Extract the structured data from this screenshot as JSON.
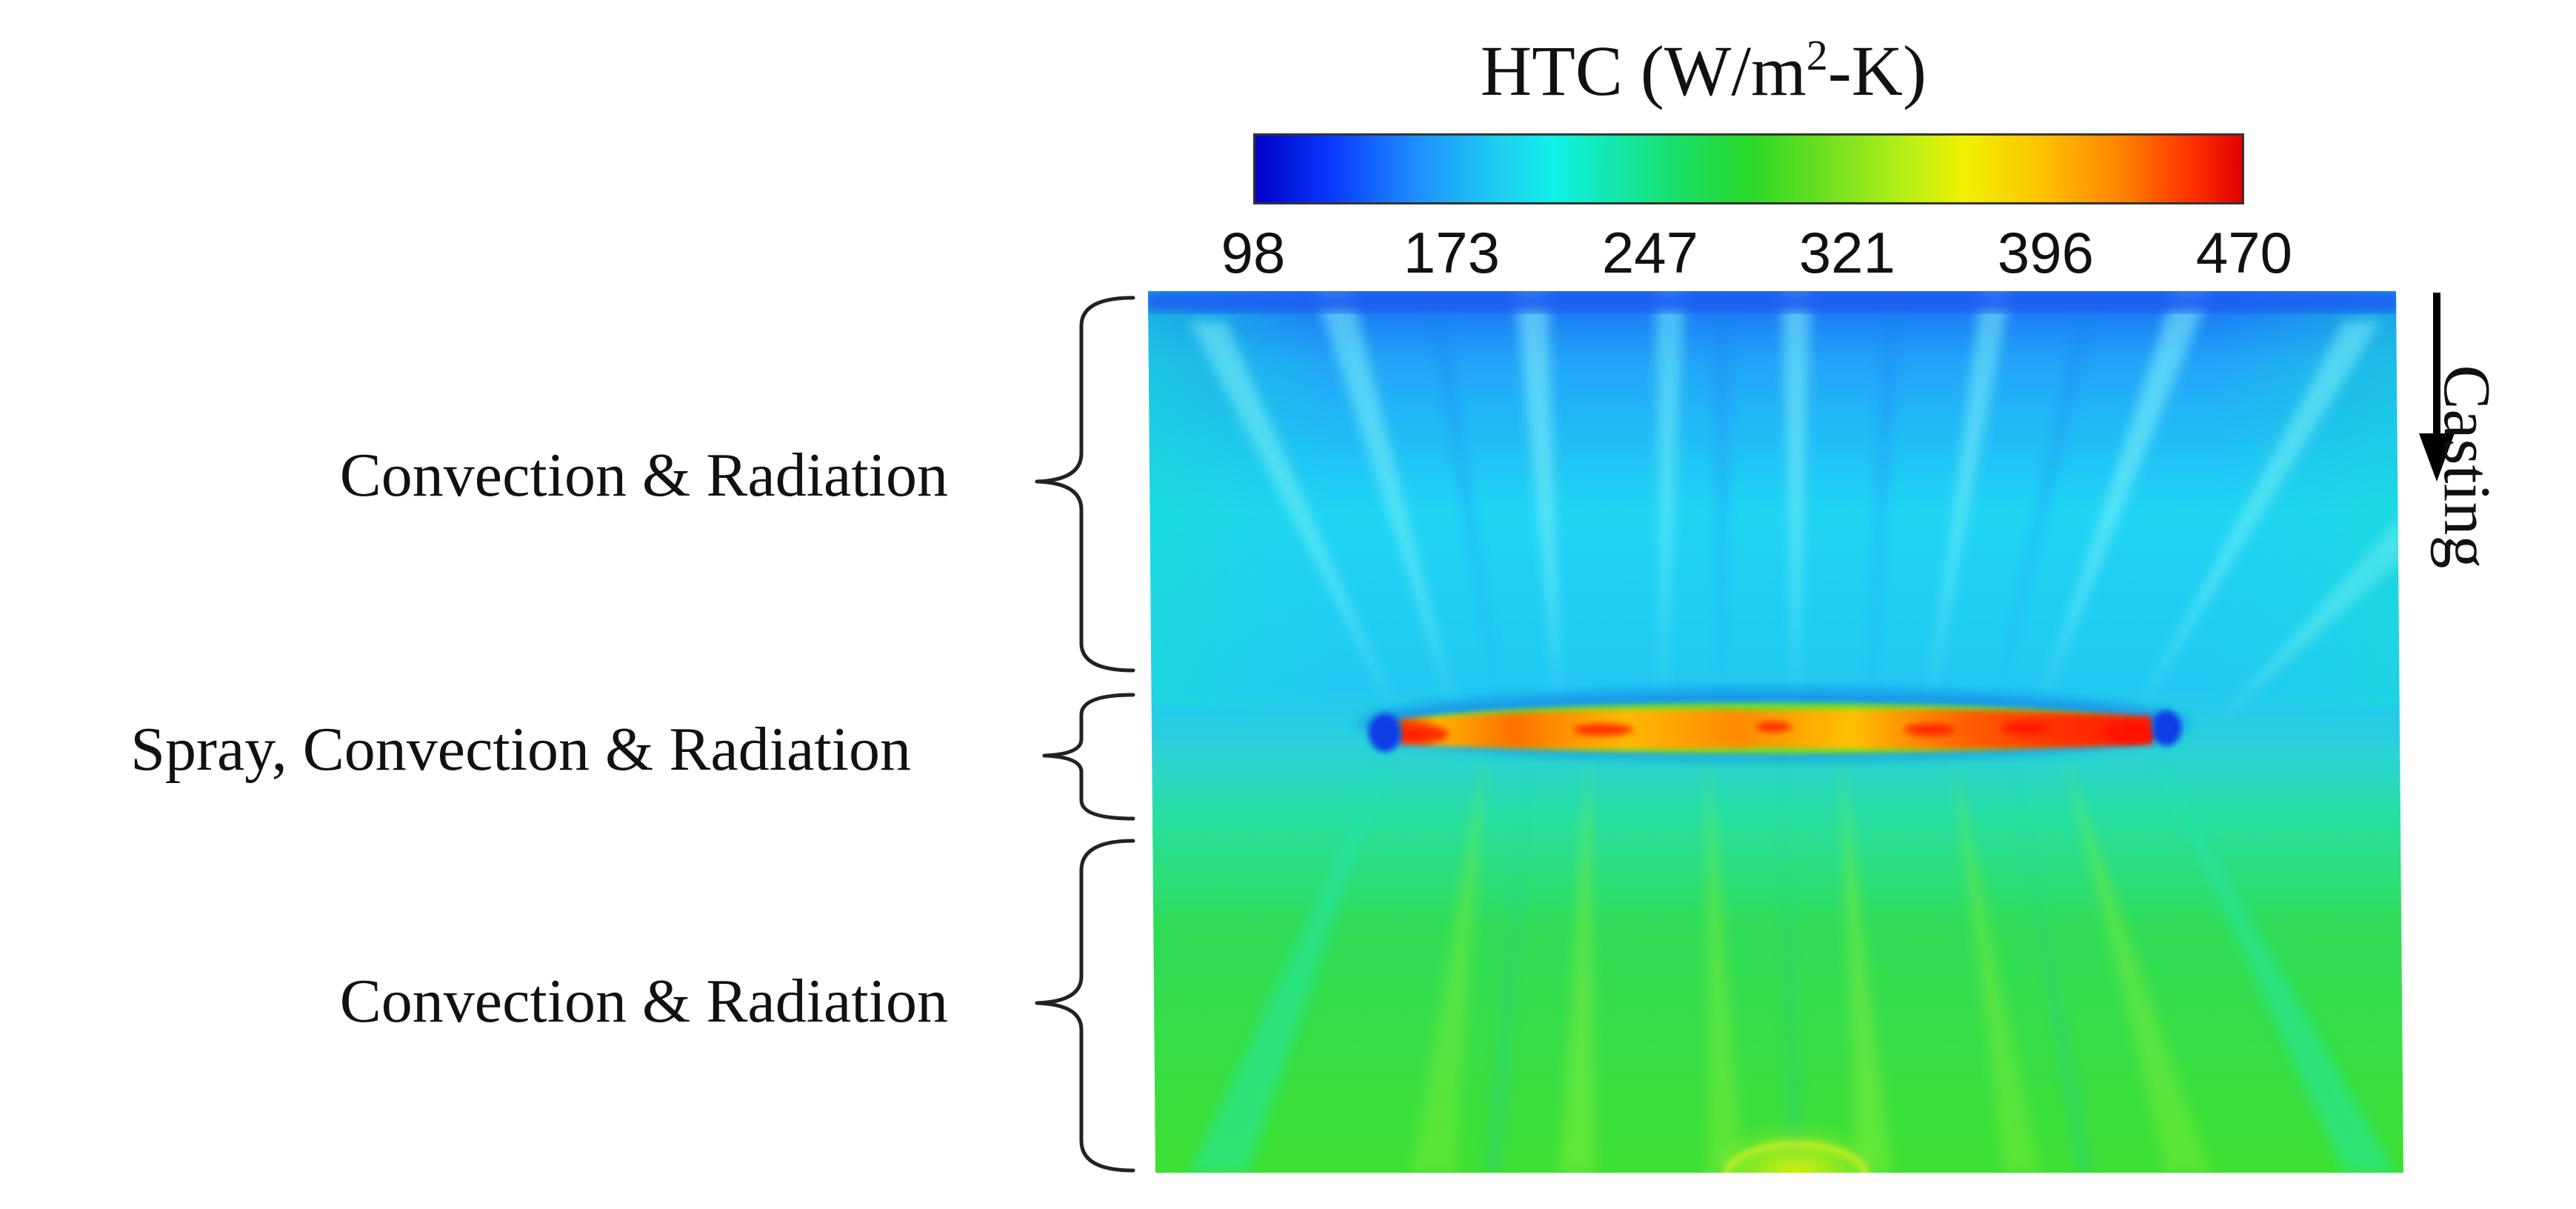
{
  "colorbar": {
    "title_prefix": "HTC (W/m",
    "title_sup": "2",
    "title_suffix": "-K)",
    "ticks": [
      "98",
      "173",
      "247",
      "321",
      "396",
      "470"
    ]
  },
  "zones": {
    "upper": "Convection & Radiation",
    "spray": "Spray, Convection & Radiation",
    "lower": "Convection & Radiation"
  },
  "direction": {
    "label": "Casting"
  }
}
